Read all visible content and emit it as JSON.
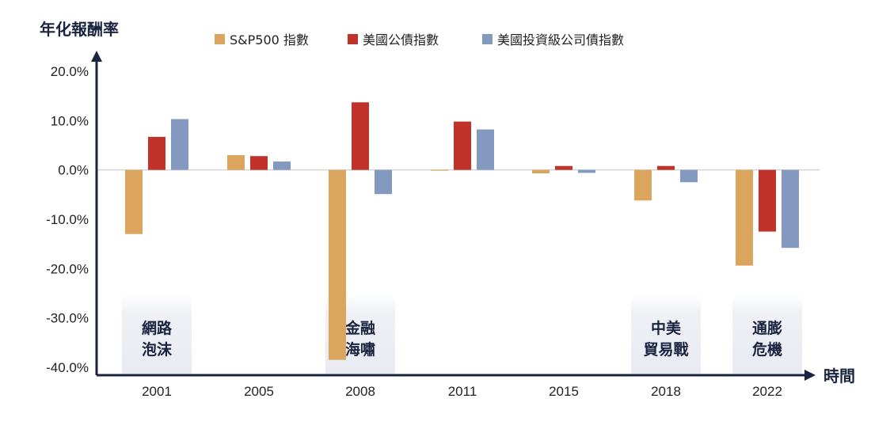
{
  "chart_data": {
    "type": "bar",
    "ylabel": "年化報酬率",
    "xlabel": "時間",
    "categories": [
      "2001",
      "2005",
      "2008",
      "2011",
      "2015",
      "2018",
      "2022"
    ],
    "ylim": [
      -40,
      20
    ],
    "yticks": [
      "20.0%",
      "10.0%",
      "0.0%",
      "-10.0%",
      "-20.0%",
      "-30.0%",
      "-40.0%"
    ],
    "legend_position": "top",
    "series": [
      {
        "name": "S&P500 指數",
        "color": "#dba55e",
        "values": [
          -13.0,
          3.0,
          -38.5,
          -0.1,
          -0.7,
          -6.2,
          -19.4
        ]
      },
      {
        "name": "美國公債指數",
        "color": "#c1322a",
        "values": [
          6.7,
          2.8,
          13.7,
          9.8,
          0.8,
          0.8,
          -12.5
        ]
      },
      {
        "name": "美國投資級公司債指數",
        "color": "#8399bf",
        "values": [
          10.3,
          1.7,
          -4.9,
          8.2,
          -0.6,
          -2.5,
          -15.8
        ]
      }
    ],
    "annotations": [
      {
        "category": "2001",
        "lines": [
          "網路",
          "泡沫"
        ]
      },
      {
        "category": "2008",
        "lines": [
          "金融",
          "海嘯"
        ]
      },
      {
        "category": "2018",
        "lines": [
          "中美",
          "貿易戰"
        ]
      },
      {
        "category": "2022",
        "lines": [
          "通膨",
          "危機"
        ]
      }
    ]
  }
}
